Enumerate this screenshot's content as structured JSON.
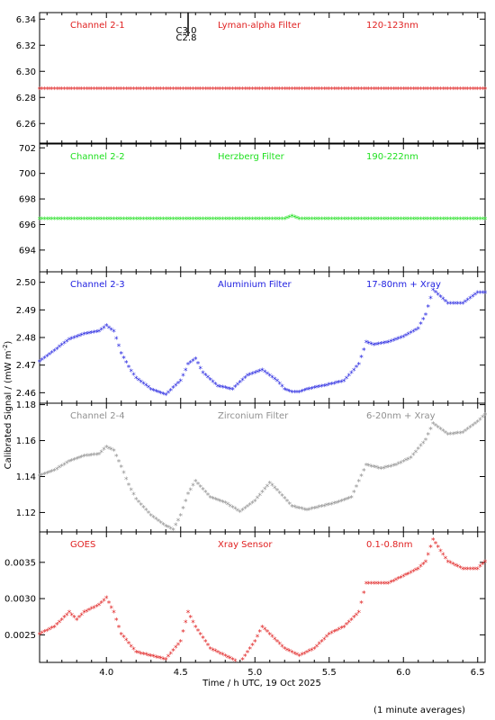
{
  "x_axis_label": "Time / h UTC, 19 Oct 2025",
  "y_axis_label": "Calibrated Signal / (mW m",
  "y_axis_label_sup": "-2",
  "y_axis_label_tail": ")",
  "footnote": "(1 minute averages)",
  "flare_marker": {
    "x": 4.55,
    "labels": [
      "C3.0",
      "C2.8"
    ]
  },
  "chart_data": [
    {
      "type": "scatter",
      "channel": "Channel 2-1",
      "filter": "Lyman-alpha Filter",
      "band": "120-123nm",
      "color": "#e02020",
      "xlim": [
        3.55,
        6.55
      ],
      "ylim": [
        6.245,
        6.345
      ],
      "yticks": [
        6.26,
        6.28,
        6.3,
        6.32,
        6.34
      ],
      "ytick_labels": [
        "6.26",
        "6.28",
        "6.30",
        "6.32",
        "6.34"
      ],
      "x": [
        3.55,
        4.0,
        4.5,
        5.0,
        5.5,
        6.0,
        6.55
      ],
      "y": [
        6.286,
        6.286,
        6.286,
        6.286,
        6.286,
        6.286,
        6.286
      ]
    },
    {
      "type": "scatter",
      "channel": "Channel 2-2",
      "filter": "Herzberg Filter",
      "band": "190-222nm",
      "color": "#20e020",
      "xlim": [
        3.55,
        6.55
      ],
      "ylim": [
        692.3,
        702.3
      ],
      "yticks": [
        694,
        696,
        698,
        700,
        702
      ],
      "ytick_labels": [
        "694",
        "696",
        "698",
        "700",
        "702"
      ],
      "x": [
        3.55,
        4.0,
        4.5,
        5.0,
        5.2,
        5.25,
        5.3,
        5.5,
        6.0,
        6.55
      ],
      "y": [
        696.4,
        696.4,
        696.4,
        696.4,
        696.4,
        696.6,
        696.4,
        696.4,
        696.4,
        696.4
      ]
    },
    {
      "type": "scatter",
      "channel": "Channel 2-3",
      "filter": "Aluminium Filter",
      "band": "17-80nm + Xray",
      "color": "#2020e0",
      "xlim": [
        3.55,
        6.55
      ],
      "ylim": [
        2.4562,
        2.5038
      ],
      "yticks": [
        2.46,
        2.47,
        2.48,
        2.49,
        2.5
      ],
      "ytick_labels": [
        "2.46",
        "2.47",
        "2.48",
        "2.49",
        "2.50"
      ],
      "x": [
        3.55,
        3.65,
        3.75,
        3.85,
        3.95,
        4.0,
        4.05,
        4.1,
        4.15,
        4.2,
        4.3,
        4.4,
        4.5,
        4.55,
        4.6,
        4.65,
        4.75,
        4.85,
        4.95,
        5.05,
        5.1,
        5.15,
        5.2,
        5.25,
        5.3,
        5.35,
        5.45,
        5.6,
        5.7,
        5.75,
        5.8,
        5.9,
        6.0,
        6.1,
        6.15,
        6.2,
        6.3,
        6.4,
        6.5,
        6.55
      ],
      "y": [
        2.471,
        2.475,
        2.479,
        2.481,
        2.482,
        2.484,
        2.482,
        2.474,
        2.469,
        2.465,
        2.461,
        2.459,
        2.464,
        2.47,
        2.472,
        2.467,
        2.462,
        2.461,
        2.466,
        2.468,
        2.466,
        2.464,
        2.461,
        2.46,
        2.46,
        2.461,
        2.462,
        2.464,
        2.47,
        2.478,
        2.477,
        2.478,
        2.48,
        2.483,
        2.488,
        2.497,
        2.492,
        2.492,
        2.496,
        2.496
      ]
    },
    {
      "type": "scatter",
      "channel": "Channel 2-4",
      "filter": "Zirconium Filter",
      "band": "6-20nm + Xray",
      "color": "#909090",
      "xlim": [
        3.55,
        6.55
      ],
      "ylim": [
        1.1092,
        1.1808
      ],
      "yticks": [
        1.12,
        1.14,
        1.16,
        1.18
      ],
      "ytick_labels": [
        "1.12",
        "1.14",
        "1.16",
        "1.18"
      ],
      "x": [
        3.55,
        3.65,
        3.75,
        3.85,
        3.95,
        4.0,
        4.05,
        4.1,
        4.15,
        4.2,
        4.3,
        4.4,
        4.45,
        4.5,
        4.55,
        4.6,
        4.7,
        4.8,
        4.9,
        5.0,
        5.1,
        5.15,
        5.25,
        5.35,
        5.45,
        5.55,
        5.65,
        5.75,
        5.85,
        5.95,
        6.05,
        6.15,
        6.2,
        6.3,
        6.4,
        6.5,
        6.55
      ],
      "y": [
        1.14,
        1.143,
        1.148,
        1.151,
        1.152,
        1.156,
        1.154,
        1.145,
        1.135,
        1.127,
        1.118,
        1.112,
        1.11,
        1.118,
        1.13,
        1.137,
        1.128,
        1.125,
        1.12,
        1.126,
        1.136,
        1.132,
        1.123,
        1.121,
        1.123,
        1.125,
        1.128,
        1.146,
        1.144,
        1.146,
        1.15,
        1.16,
        1.169,
        1.163,
        1.164,
        1.17,
        1.174
      ]
    },
    {
      "type": "scatter",
      "channel": "GOES",
      "filter": "Xray Sensor",
      "band": "0.1-0.8nm",
      "color": "#e02020",
      "xlim": [
        3.55,
        6.55
      ],
      "ylim": [
        0.00212,
        0.00392
      ],
      "yticks": [
        0.0025,
        0.003,
        0.0035
      ],
      "ytick_labels": [
        "0.0025",
        "0.0030",
        "0.0035"
      ],
      "x": [
        3.55,
        3.65,
        3.75,
        3.8,
        3.85,
        3.95,
        4.0,
        4.05,
        4.1,
        4.2,
        4.3,
        4.4,
        4.5,
        4.55,
        4.6,
        4.7,
        4.8,
        4.9,
        5.0,
        5.05,
        5.1,
        5.2,
        5.3,
        5.4,
        5.5,
        5.6,
        5.7,
        5.75,
        5.8,
        5.9,
        6.0,
        6.1,
        6.15,
        6.2,
        6.3,
        6.4,
        6.5,
        6.55
      ],
      "y": [
        0.0025,
        0.0026,
        0.0028,
        0.0027,
        0.0028,
        0.0029,
        0.003,
        0.0028,
        0.0025,
        0.00225,
        0.0022,
        0.00215,
        0.0024,
        0.0028,
        0.0026,
        0.0023,
        0.0022,
        0.0021,
        0.0024,
        0.0026,
        0.0025,
        0.0023,
        0.0022,
        0.0023,
        0.0025,
        0.0026,
        0.0028,
        0.0032,
        0.0032,
        0.0032,
        0.0033,
        0.0034,
        0.0035,
        0.0038,
        0.0035,
        0.0034,
        0.0034,
        0.0035
      ]
    }
  ],
  "x_axis": {
    "xlim": [
      3.55,
      6.55
    ],
    "ticks": [
      4.0,
      4.5,
      5.0,
      5.5,
      6.0,
      6.5
    ],
    "tick_labels": [
      "4.0",
      "4.5",
      "5.0",
      "5.5",
      "6.0",
      "6.5"
    ]
  }
}
